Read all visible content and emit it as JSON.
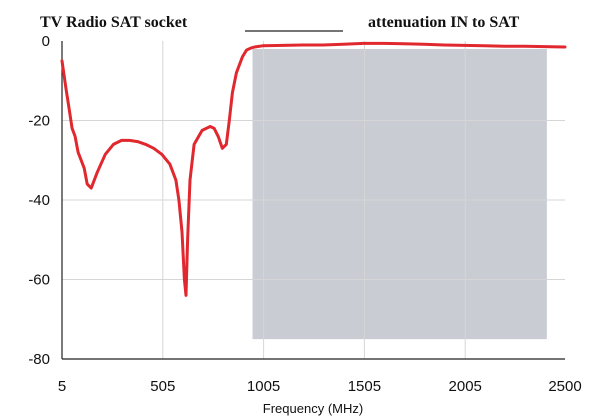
{
  "chart_data": {
    "type": "line",
    "title_left": "TV Radio SAT socket",
    "title_right": "attenuation IN to SAT",
    "xlabel": "Frequency (MHz)",
    "ylabel": "",
    "xlim": [
      5,
      2500
    ],
    "ylim": [
      -80,
      0
    ],
    "x_ticks": [
      5,
      505,
      1005,
      1505,
      2005,
      2500
    ],
    "x_tick_labels": [
      "5",
      "505",
      "1005",
      "1505",
      "2005",
      "2500"
    ],
    "y_ticks": [
      0,
      -20,
      -40,
      -60,
      -80
    ],
    "y_tick_labels": [
      "0",
      "-20",
      "-40",
      "-60",
      "-80"
    ],
    "grid": true,
    "legend": "top-center line sample",
    "shaded_band": {
      "x_range": [
        950,
        2410
      ],
      "y_range": [
        -75,
        -2
      ],
      "color": "#c9ccd3"
    },
    "series": [
      {
        "color": "#e0282e",
        "x": [
          5,
          25,
          40,
          55,
          70,
          85,
          100,
          115,
          130,
          150,
          180,
          220,
          260,
          300,
          340,
          380,
          420,
          460,
          500,
          540,
          570,
          585,
          600,
          612,
          620,
          628,
          640,
          660,
          700,
          740,
          760,
          780,
          800,
          820,
          835,
          850,
          870,
          900,
          920,
          940,
          960,
          1000,
          1100,
          1200,
          1300,
          1400,
          1500,
          1600,
          1700,
          1800,
          1900,
          2000,
          2100,
          2200,
          2300,
          2400,
          2500
        ],
        "y": [
          -5,
          -12,
          -17,
          -22,
          -24,
          -28,
          -30,
          -32,
          -36,
          -37,
          -33,
          -28.5,
          -26,
          -25,
          -25,
          -25.3,
          -26,
          -27,
          -28.5,
          -31,
          -35,
          -40,
          -48,
          -60,
          -64,
          -50,
          -35,
          -26,
          -22.5,
          -21.5,
          -22,
          -24,
          -27,
          -26,
          -20,
          -13,
          -8,
          -4,
          -2.3,
          -1.8,
          -1.5,
          -1.2,
          -1.1,
          -1.0,
          -1.0,
          -0.8,
          -0.6,
          -0.6,
          -0.7,
          -0.8,
          -1.0,
          -1.1,
          -1.2,
          -1.3,
          -1.3,
          -1.4,
          -1.5
        ]
      }
    ]
  }
}
